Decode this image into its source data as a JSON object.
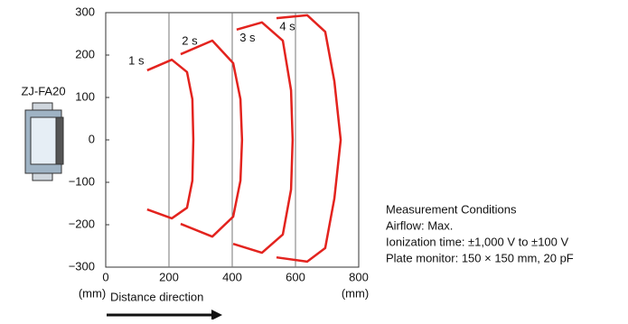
{
  "chart_data": {
    "type": "line",
    "device_label": "ZJ-FA20",
    "x_label": "Distance direction",
    "x_unit": "(mm)",
    "y_unit": "(mm)",
    "xlim": [
      0,
      800
    ],
    "ylim": [
      -300,
      300
    ],
    "xticks": [
      0,
      200,
      400,
      600,
      800
    ],
    "yticks": [
      {
        "value": -300,
        "label": "−300"
      },
      {
        "value": -200,
        "label": "−200"
      },
      {
        "value": -100,
        "label": "−100"
      },
      0,
      100,
      200,
      300
    ],
    "grid": "x",
    "series": [
      {
        "name": "1 s",
        "color": "#e3231e",
        "x": [
          131,
          209,
          257,
          274,
          277,
          274,
          257,
          209,
          131
        ],
        "values": [
          164,
          189,
          160,
          96,
          0,
          -96,
          -160,
          -185,
          -164
        ]
      },
      {
        "name": "2 s",
        "color": "#e3231e",
        "x": [
          237,
          337,
          403,
          426,
          431,
          426,
          403,
          337,
          237
        ],
        "values": [
          202,
          234,
          181,
          96,
          0,
          -96,
          -181,
          -228,
          -198
        ]
      },
      {
        "name": "3 s",
        "color": "#e3231e",
        "x": [
          414,
          494,
          560,
          586,
          591,
          586,
          560,
          494,
          403
        ],
        "values": [
          260,
          277,
          234,
          117,
          0,
          -117,
          -223,
          -266,
          -245
        ]
      },
      {
        "name": "4 s",
        "color": "#e3231e",
        "x": [
          540,
          637,
          694,
          723,
          743,
          723,
          694,
          637,
          540
        ],
        "values": [
          287,
          294,
          255,
          138,
          0,
          -138,
          -255,
          -287,
          -277
        ]
      }
    ],
    "conditions": [
      "Measurement Conditions",
      "Airflow: Max.",
      "Ionization time: ±1,000 V to  ±100 V",
      "Plate monitor: 150 × 150 mm, 20 pF"
    ]
  }
}
